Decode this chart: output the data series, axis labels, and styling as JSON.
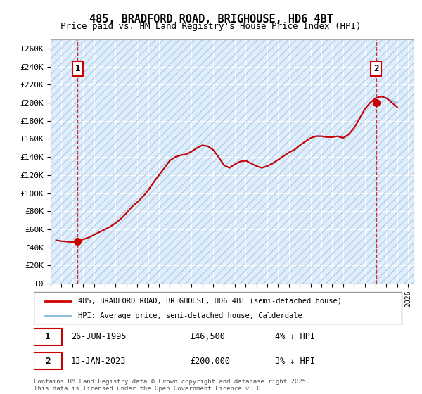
{
  "title": "485, BRADFORD ROAD, BRIGHOUSE, HD6 4BT",
  "subtitle": "Price paid vs. HM Land Registry's House Price Index (HPI)",
  "xlabel": "",
  "ylabel": "",
  "ylim": [
    0,
    270000
  ],
  "yticks": [
    0,
    20000,
    40000,
    60000,
    80000,
    100000,
    120000,
    140000,
    160000,
    180000,
    200000,
    220000,
    240000,
    260000
  ],
  "ytick_labels": [
    "£0",
    "£20K",
    "£40K",
    "£60K",
    "£80K",
    "£100K",
    "£120K",
    "£140K",
    "£160K",
    "£180K",
    "£200K",
    "£220K",
    "£240K",
    "£260K"
  ],
  "xlim_start": 1993.0,
  "xlim_end": 2026.5,
  "background_color": "#ffffff",
  "plot_bg_color": "#ddeeff",
  "hatch_color": "#bbccdd",
  "grid_color": "#ffffff",
  "line1_color": "#cc0000",
  "line2_color": "#88bbdd",
  "marker1_x": 1995.48,
  "marker1_y": 46500,
  "marker2_x": 2023.04,
  "marker2_y": 200000,
  "legend1_label": "485, BRADFORD ROAD, BRIGHOUSE, HD6 4BT (semi-detached house)",
  "legend2_label": "HPI: Average price, semi-detached house, Calderdale",
  "annotation1": "1",
  "annotation2": "2",
  "table_row1": [
    "1",
    "26-JUN-1995",
    "£46,500",
    "4% ↓ HPI"
  ],
  "table_row2": [
    "2",
    "13-JAN-2023",
    "£200,000",
    "3% ↓ HPI"
  ],
  "footer": "Contains HM Land Registry data © Crown copyright and database right 2025.\nThis data is licensed under the Open Government Licence v3.0.",
  "hpi_years": [
    1993.5,
    1994.0,
    1994.5,
    1995.0,
    1995.5,
    1996.0,
    1996.5,
    1997.0,
    1997.5,
    1998.0,
    1998.5,
    1999.0,
    1999.5,
    2000.0,
    2000.5,
    2001.0,
    2001.5,
    2002.0,
    2002.5,
    2003.0,
    2003.5,
    2004.0,
    2004.5,
    2005.0,
    2005.5,
    2006.0,
    2006.5,
    2007.0,
    2007.5,
    2008.0,
    2008.5,
    2009.0,
    2009.5,
    2010.0,
    2010.5,
    2011.0,
    2011.5,
    2012.0,
    2012.5,
    2013.0,
    2013.5,
    2014.0,
    2014.5,
    2015.0,
    2015.5,
    2016.0,
    2016.5,
    2017.0,
    2017.5,
    2018.0,
    2018.5,
    2019.0,
    2019.5,
    2020.0,
    2020.5,
    2021.0,
    2021.5,
    2022.0,
    2022.5,
    2023.0,
    2023.5,
    2024.0,
    2024.5,
    2025.0
  ],
  "hpi_values": [
    48000,
    47000,
    46500,
    46000,
    47500,
    49000,
    51000,
    54000,
    57000,
    60000,
    63000,
    67000,
    72000,
    78000,
    85000,
    90000,
    96000,
    103000,
    112000,
    120000,
    128000,
    136000,
    140000,
    142000,
    143000,
    146000,
    150000,
    153000,
    152000,
    148000,
    140000,
    131000,
    128000,
    132000,
    135000,
    136000,
    133000,
    130000,
    128000,
    130000,
    133000,
    137000,
    141000,
    145000,
    148000,
    153000,
    157000,
    161000,
    163000,
    163000,
    162000,
    162000,
    163000,
    161000,
    165000,
    172000,
    182000,
    193000,
    200000,
    205000,
    207000,
    205000,
    202000,
    200000
  ],
  "price_years": [
    1993.5,
    1994.0,
    1994.5,
    1995.0,
    1995.5,
    1996.0,
    1996.5,
    1997.0,
    1997.5,
    1998.0,
    1998.5,
    1999.0,
    1999.5,
    2000.0,
    2000.5,
    2001.0,
    2001.5,
    2002.0,
    2002.5,
    2003.0,
    2003.5,
    2004.0,
    2004.5,
    2005.0,
    2005.5,
    2006.0,
    2006.5,
    2007.0,
    2007.5,
    2008.0,
    2008.5,
    2009.0,
    2009.5,
    2010.0,
    2010.5,
    2011.0,
    2011.5,
    2012.0,
    2012.5,
    2013.0,
    2013.5,
    2014.0,
    2014.5,
    2015.0,
    2015.5,
    2016.0,
    2016.5,
    2017.0,
    2017.5,
    2018.0,
    2018.5,
    2019.0,
    2019.5,
    2020.0,
    2020.5,
    2021.0,
    2021.5,
    2022.0,
    2022.5,
    2023.0,
    2023.5,
    2024.0,
    2024.5,
    2025.0
  ],
  "price_values": [
    48000,
    47000,
    46500,
    46000,
    46500,
    49000,
    51000,
    54000,
    57000,
    60000,
    63000,
    67000,
    72000,
    78000,
    85000,
    90000,
    96000,
    103000,
    112000,
    120000,
    128000,
    136000,
    140000,
    142000,
    143000,
    146000,
    150000,
    153000,
    152000,
    148000,
    140000,
    131000,
    128000,
    132000,
    135000,
    136000,
    133000,
    130000,
    128000,
    130000,
    133000,
    137000,
    141000,
    145000,
    148000,
    153000,
    157000,
    161000,
    163000,
    163000,
    162000,
    162000,
    163000,
    161000,
    165000,
    172000,
    182000,
    193000,
    200000,
    205000,
    207000,
    205000,
    200000,
    195000
  ]
}
